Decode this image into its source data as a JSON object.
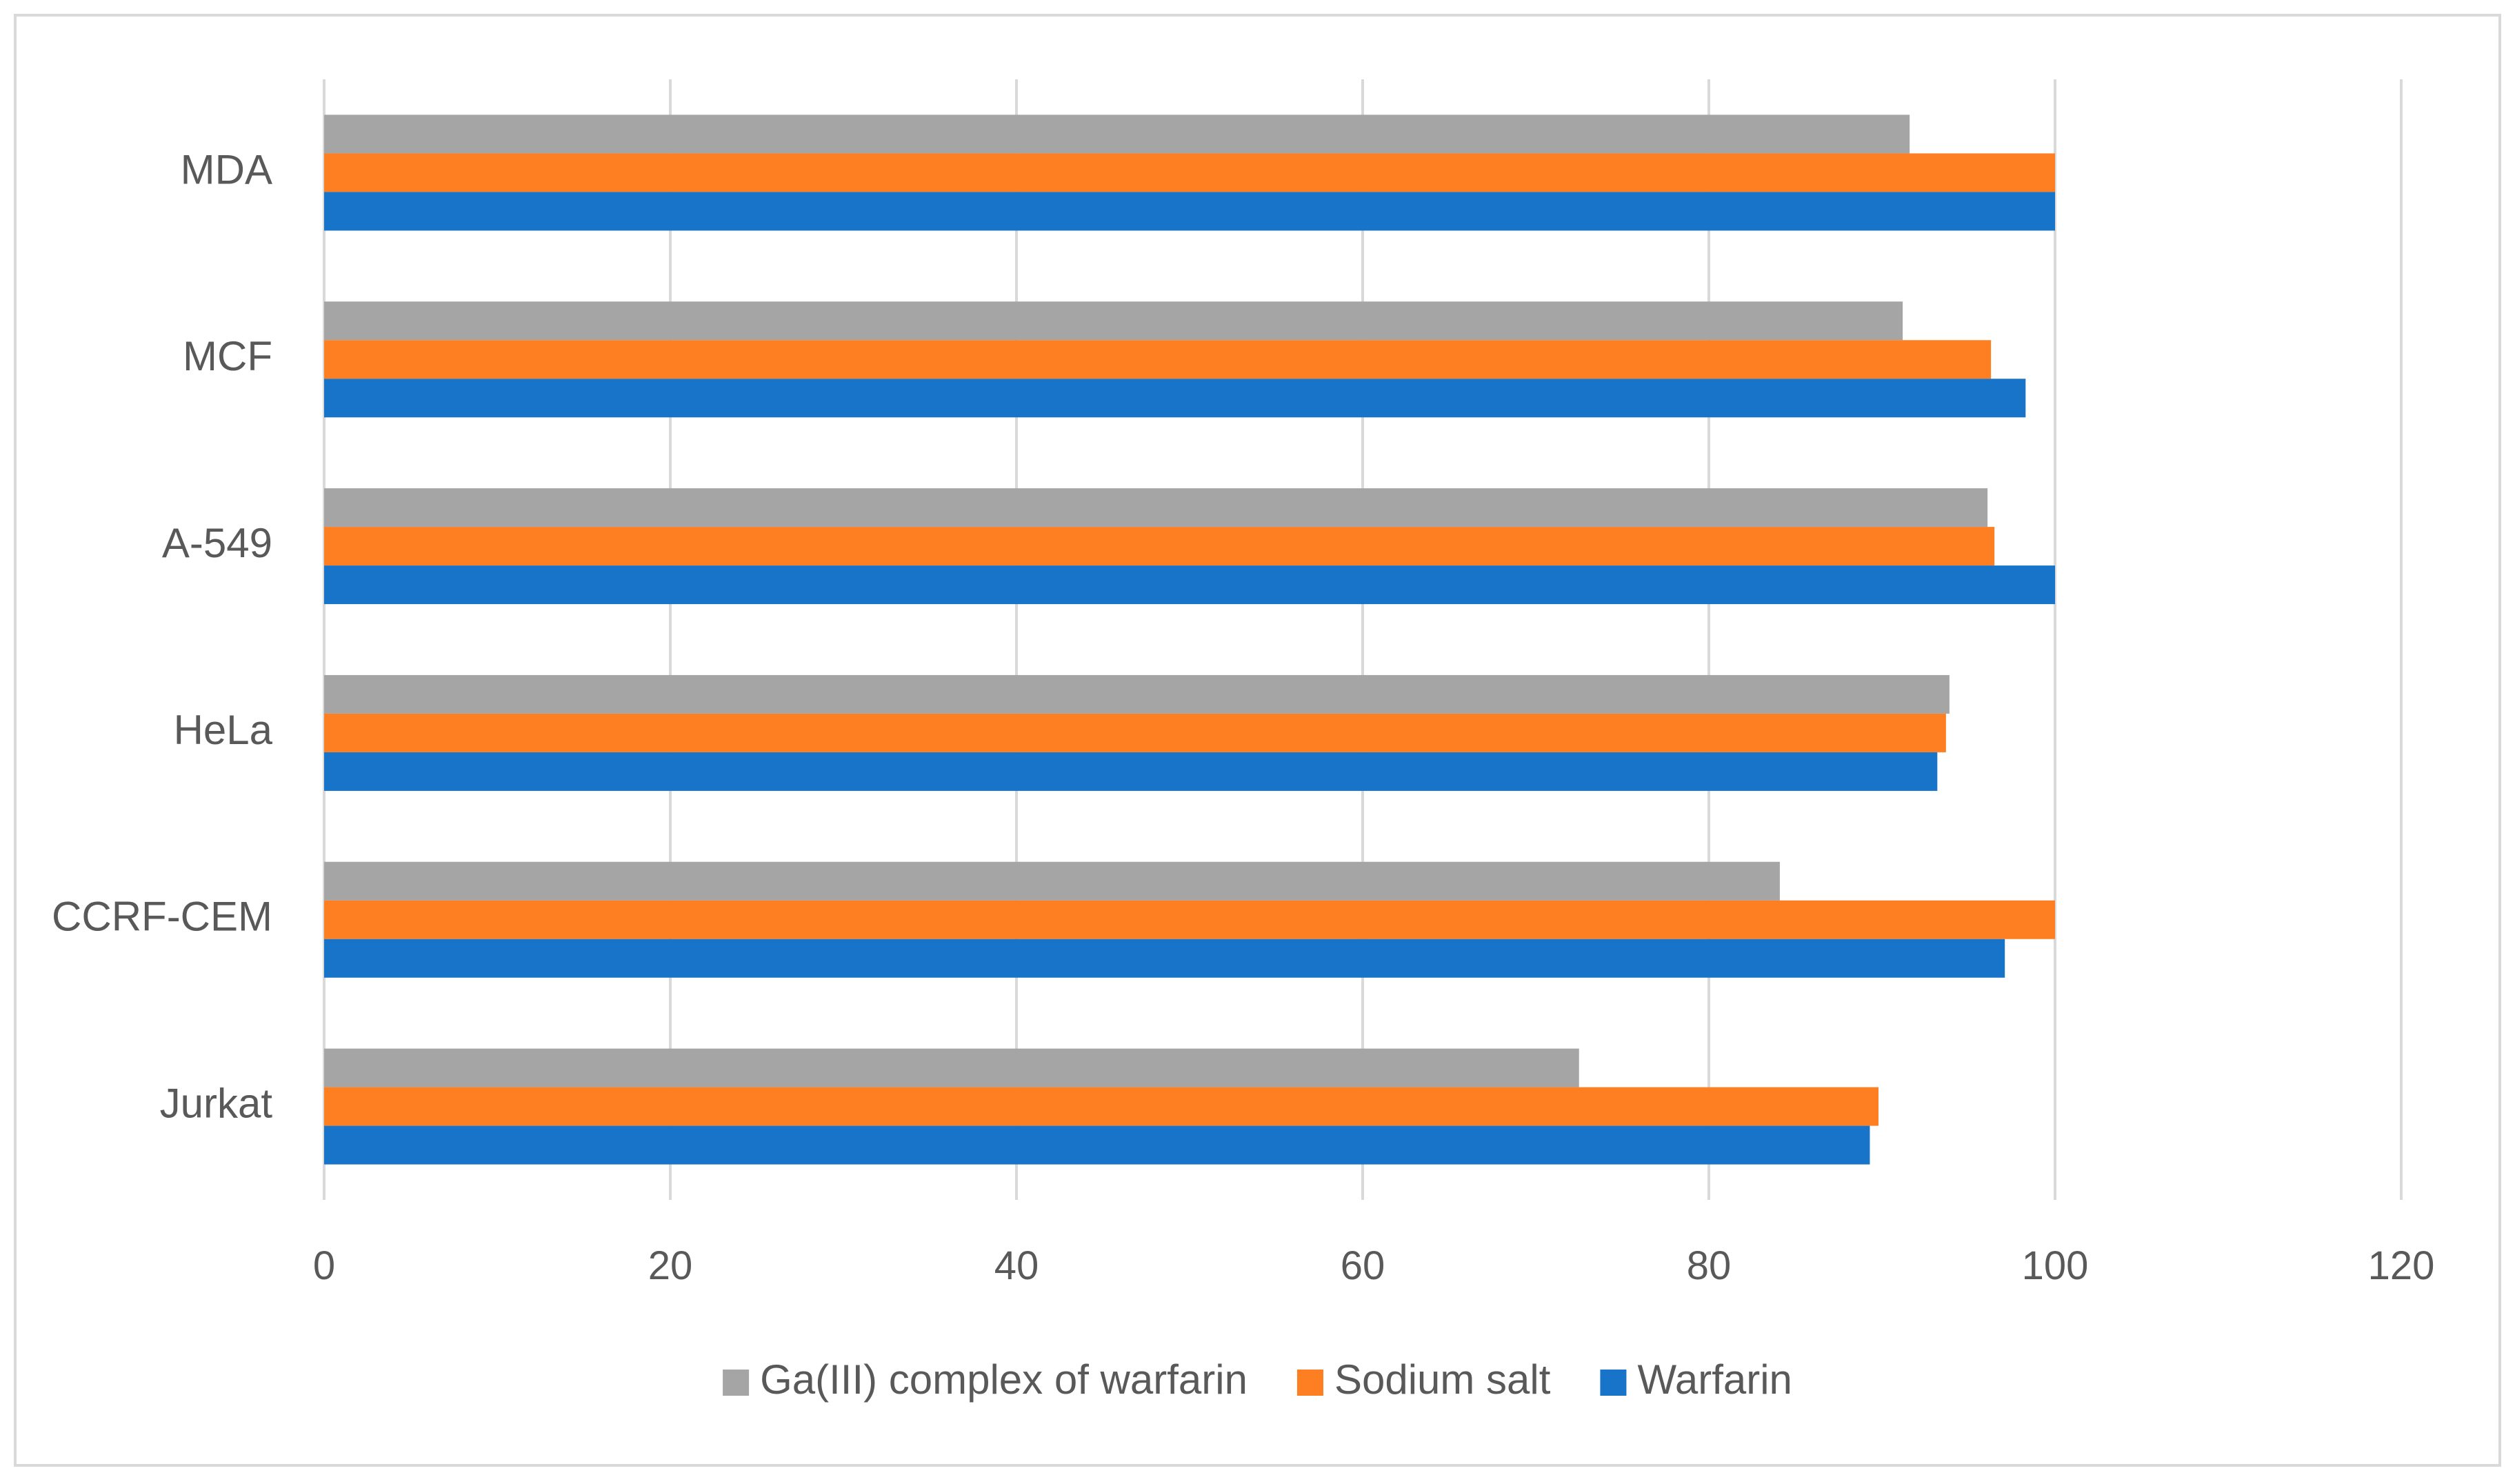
{
  "chart_data": {
    "type": "bar",
    "orientation": "horizontal",
    "title": "",
    "xlabel": "",
    "ylabel": "",
    "xlim": [
      0,
      120
    ],
    "x_ticks": [
      "0",
      "20",
      "40",
      "60",
      "80",
      "100",
      "120"
    ],
    "x_tick_values": [
      0,
      20,
      40,
      60,
      80,
      100,
      120
    ],
    "grid": true,
    "legend_position": "bottom",
    "categories": [
      "MDA",
      "MCF",
      "A-549",
      "HeLa",
      "CCRF-CEM",
      "Jurkat"
    ],
    "series": [
      {
        "name": "Ga(III) complex of warfarin",
        "color": "#a5a5a5",
        "values": [
          91.6,
          91.2,
          96.1,
          93.9,
          84.1,
          72.5
        ]
      },
      {
        "name": "Sodium salt",
        "color": "#fd7f22",
        "values": [
          100,
          96.3,
          96.5,
          93.7,
          100,
          89.8
        ]
      },
      {
        "name": "Warfarin",
        "color": "#1874c8",
        "values": [
          100,
          98.3,
          100,
          93.2,
          97.1,
          89.3
        ]
      }
    ]
  }
}
